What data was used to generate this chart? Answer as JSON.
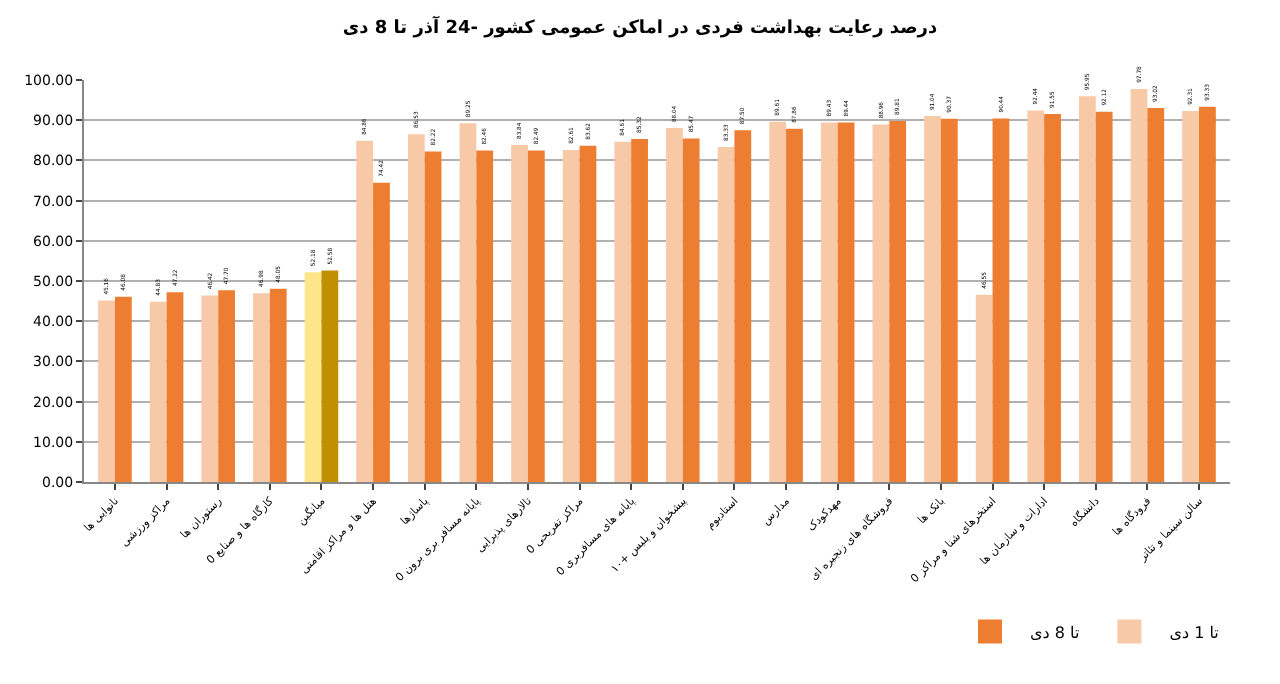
{
  "chart_data": {
    "type": "bar",
    "title": "درصد رعایت بهداشت فردی در اماکن عمومی کشور -24 آذر تا 8 دی",
    "categories": [
      "نانوایی ها",
      "مراکز ورزشی",
      "رستوران ها",
      "کارگاه ها و صنایع 0",
      "میانگین",
      "هتل ها و مراکز اقامتی",
      "پاساژها",
      "پایانه مسافر بری برون 0",
      "تالارهای پذیرایی",
      "مراکز تفریحی 0",
      "پایانه های مسافربری 0",
      "پیشخوان و پلیس +۱۰",
      "استادیوم",
      "مدارس",
      "مهدکودک",
      "فروشگاه های زنجیره ای",
      "بانک ها",
      "استخرهای شنا و مراکز 0",
      "ادارات و سازمان ها",
      "دانشگاه",
      "فرودگاه ها",
      "سالن سینما و تئاتر"
    ],
    "series": [
      {
        "name": "تا 1 دی",
        "color": "#f8c9a6",
        "colors": [
          null,
          null,
          null,
          null,
          "#fde58a",
          null,
          null,
          null,
          null,
          null,
          null,
          null,
          null,
          null,
          null,
          null,
          null,
          null,
          null,
          null,
          null,
          null
        ],
        "values": [
          45.16,
          44.83,
          46.42,
          46.98,
          52.18,
          84.86,
          86.53,
          89.25,
          83.84,
          82.61,
          84.61,
          88.04,
          83.33,
          89.61,
          89.43,
          88.96,
          91.04,
          46.55,
          92.44,
          95.95,
          97.78,
          92.31
        ],
        "value_labels": [
          "45.16",
          "44.83",
          "46.42",
          "46.98",
          "52.18",
          "84.86",
          "86.53",
          "89.25",
          "83.84",
          "82.61",
          "84.61",
          "88.04",
          "83.33",
          "89.61",
          "89.43",
          "88.96",
          "91.04",
          "46.55",
          "92.44",
          "95.95",
          "97.78",
          "92.31"
        ]
      },
      {
        "name": "تا 8 دی",
        "color": "#ed7d31",
        "colors": [
          null,
          null,
          null,
          null,
          "#c09000",
          null,
          null,
          null,
          null,
          null,
          null,
          null,
          null,
          null,
          null,
          null,
          null,
          null,
          null,
          null,
          null,
          null
        ],
        "values": [
          46.08,
          47.22,
          47.7,
          48.05,
          52.58,
          74.42,
          82.22,
          82.46,
          82.49,
          83.62,
          85.32,
          85.47,
          87.5,
          87.86,
          89.44,
          89.81,
          90.37,
          90.44,
          91.55,
          92.12,
          93.02,
          93.33
        ],
        "value_labels": [
          "46.08",
          "47.22",
          "47.70",
          "48.05",
          "52.58",
          "74.42",
          "82.22",
          "82.46",
          "82.49",
          "83.62",
          "85.32",
          "85.47",
          "87.50",
          "87.86",
          "89.44",
          "89.81",
          "90.37",
          "90.44",
          "91.55",
          "92.12",
          "93.02",
          "93.33"
        ]
      }
    ],
    "ylim": [
      0,
      100
    ],
    "yticks": [
      {
        "value": 0,
        "label": "0.00"
      },
      {
        "value": 10,
        "label": "10.00"
      },
      {
        "value": 20,
        "label": "20.00"
      },
      {
        "value": 30,
        "label": "30.00"
      },
      {
        "value": 40,
        "label": "40.00"
      },
      {
        "value": 50,
        "label": "50.00"
      },
      {
        "value": 60,
        "label": "60.00"
      },
      {
        "value": 70,
        "label": "70.00"
      },
      {
        "value": 80,
        "label": "80.00"
      },
      {
        "value": 90,
        "label": "90.00"
      },
      {
        "value": 100,
        "label": "100.00"
      }
    ],
    "grid": "y",
    "legend": "bottom right"
  }
}
